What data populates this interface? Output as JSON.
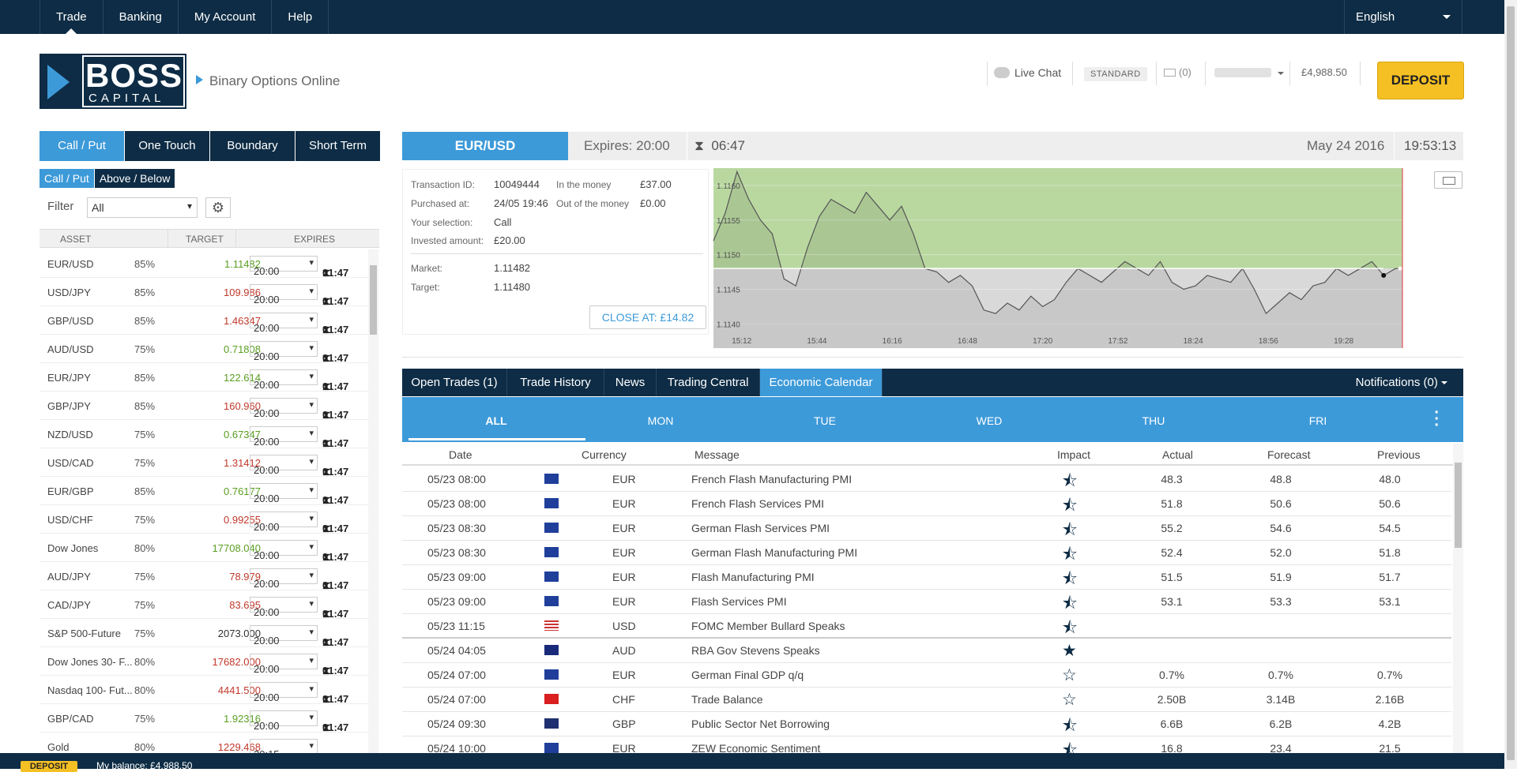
{
  "nav": {
    "items": [
      "Trade",
      "Banking",
      "My Account",
      "Help"
    ],
    "language": "English"
  },
  "logo": {
    "word1": "BOSS",
    "word2": "CAPITAL"
  },
  "tagline": "Binary Options Online",
  "header": {
    "live_chat": "Live Chat",
    "account_type": "STANDARD",
    "messages": "(0)",
    "balance": "£4,988.50",
    "deposit": "DEPOSIT"
  },
  "option_tabs": [
    "Call / Put",
    "One Touch",
    "Boundary",
    "Short Term"
  ],
  "sub_tabs": [
    "Call / Put",
    "Above / Below"
  ],
  "filter": {
    "label": "Filter",
    "value": "All"
  },
  "asset_columns": {
    "asset": "ASSET",
    "target": "TARGET",
    "expires": "EXPIRES"
  },
  "assets": [
    {
      "name": "EUR/USD",
      "pct": "85%",
      "target": "1.11482",
      "dir": "up",
      "expiry": "20:00",
      "time": "01:47"
    },
    {
      "name": "USD/JPY",
      "pct": "85%",
      "target": "109.986",
      "dir": "dn",
      "expiry": "20:00",
      "time": "01:47"
    },
    {
      "name": "GBP/USD",
      "pct": "85%",
      "target": "1.46347",
      "dir": "dn",
      "expiry": "20:00",
      "time": "01:47"
    },
    {
      "name": "AUD/USD",
      "pct": "75%",
      "target": "0.71808",
      "dir": "up",
      "expiry": "20:00",
      "time": "01:47"
    },
    {
      "name": "EUR/JPY",
      "pct": "85%",
      "target": "122.614",
      "dir": "up",
      "expiry": "20:00",
      "time": "01:47"
    },
    {
      "name": "GBP/JPY",
      "pct": "85%",
      "target": "160.960",
      "dir": "dn",
      "expiry": "20:00",
      "time": "01:47"
    },
    {
      "name": "NZD/USD",
      "pct": "75%",
      "target": "0.67347",
      "dir": "up",
      "expiry": "20:00",
      "time": "01:47"
    },
    {
      "name": "USD/CAD",
      "pct": "75%",
      "target": "1.31412",
      "dir": "dn",
      "expiry": "20:00",
      "time": "01:47"
    },
    {
      "name": "EUR/GBP",
      "pct": "85%",
      "target": "0.76177",
      "dir": "up",
      "expiry": "20:00",
      "time": "01:47"
    },
    {
      "name": "USD/CHF",
      "pct": "75%",
      "target": "0.99255",
      "dir": "dn",
      "expiry": "20:00",
      "time": "01:47"
    },
    {
      "name": "Dow Jones",
      "pct": "80%",
      "target": "17708.040",
      "dir": "up",
      "expiry": "20:00",
      "time": "01:47"
    },
    {
      "name": "AUD/JPY",
      "pct": "75%",
      "target": "78.979",
      "dir": "dn",
      "expiry": "20:00",
      "time": "01:47"
    },
    {
      "name": "CAD/JPY",
      "pct": "75%",
      "target": "83.695",
      "dir": "dn",
      "expiry": "20:00",
      "time": "01:47"
    },
    {
      "name": "S&P 500-Future",
      "pct": "75%",
      "target": "2073.000",
      "dir": "nt",
      "expiry": "20:00",
      "time": "01:47"
    },
    {
      "name": "Dow Jones 30- F...",
      "pct": "80%",
      "target": "17682.000",
      "dir": "dn",
      "expiry": "20:00",
      "time": "01:47"
    },
    {
      "name": "Nasdaq 100- Fut...",
      "pct": "80%",
      "target": "4441.500",
      "dir": "dn",
      "expiry": "20:00",
      "time": "01:47"
    },
    {
      "name": "GBP/CAD",
      "pct": "75%",
      "target": "1.92316",
      "dir": "up",
      "expiry": "20:00",
      "time": "01:47"
    },
    {
      "name": "Gold",
      "pct": "80%",
      "target": "1229.468",
      "dir": "dn",
      "expiry": "20:15",
      "time": ""
    }
  ],
  "trade": {
    "pair": "EUR/USD",
    "expires_label": "Expires:",
    "expires": "20:00",
    "countdown": "06:47",
    "date": "May 24 2016",
    "time": "19:53:13"
  },
  "trade_info": {
    "transaction_id_label": "Transaction ID:",
    "transaction_id": "10049444",
    "in_money_label": "In the money",
    "in_money": "£37.00",
    "purchased_label": "Purchased at:",
    "purchased": "24/05 19:46",
    "out_money_label": "Out of the money",
    "out_money": "£0.00",
    "selection_label": "Your selection:",
    "selection": "Call",
    "invested_label": "Invested amount:",
    "invested": "£20.00",
    "market_label": "Market:",
    "market": "1.11482",
    "target_label": "Target:",
    "target": "1.11480",
    "close_label": "CLOSE AT: £14.82"
  },
  "chart_data": {
    "type": "line",
    "y_ticks": [
      "1.1160",
      "1.1155",
      "1.1150",
      "1.1145",
      "1.1140"
    ],
    "x_ticks": [
      "15:12",
      "15:44",
      "16:16",
      "16:48",
      "17:20",
      "17:52",
      "18:24",
      "18:56",
      "19:28"
    ],
    "target": 1.1148,
    "ylim": [
      1.11365,
      1.11625
    ],
    "xlim": [
      "15:00",
      "19:53"
    ],
    "expiry_marker": "19:53",
    "series": [
      {
        "x": [
          "15:00",
          "15:05",
          "15:10",
          "15:15",
          "15:20",
          "15:25",
          "15:30",
          "15:35",
          "15:40",
          "15:45",
          "15:50",
          "15:55",
          "16:00",
          "16:05",
          "16:10",
          "16:15",
          "16:20",
          "16:25",
          "16:30",
          "16:35",
          "16:40",
          "16:45",
          "16:50",
          "16:55",
          "17:00",
          "17:05",
          "17:10",
          "17:15",
          "17:20",
          "17:25",
          "17:30",
          "17:35",
          "17:40",
          "17:45",
          "17:50",
          "17:55",
          "18:00",
          "18:05",
          "18:10",
          "18:15",
          "18:20",
          "18:25",
          "18:30",
          "18:35",
          "18:40",
          "18:45",
          "18:50",
          "18:55",
          "19:00",
          "19:05",
          "19:10",
          "19:15",
          "19:20",
          "19:25",
          "19:30",
          "19:35",
          "19:40",
          "19:45",
          "19:50"
        ],
        "values": [
          1.1152,
          1.1156,
          1.1162,
          1.1158,
          1.1155,
          1.1153,
          1.11465,
          1.11455,
          1.1151,
          1.11555,
          1.1158,
          1.1157,
          1.1156,
          1.1159,
          1.1157,
          1.1155,
          1.1157,
          1.1153,
          1.1148,
          1.11475,
          1.1146,
          1.1147,
          1.11455,
          1.1142,
          1.11415,
          1.1143,
          1.1142,
          1.1144,
          1.11425,
          1.11435,
          1.1146,
          1.1148,
          1.1147,
          1.1146,
          1.11475,
          1.1149,
          1.1148,
          1.1147,
          1.1149,
          1.1146,
          1.1145,
          1.11455,
          1.1147,
          1.11465,
          1.1146,
          1.1148,
          1.1145,
          1.11415,
          1.1143,
          1.11445,
          1.11435,
          1.11455,
          1.1146,
          1.1148,
          1.1147,
          1.1148,
          1.1149,
          1.1147,
          1.1148
        ]
      }
    ]
  },
  "bottom_tabs": [
    "Open Trades (1)",
    "Trade History",
    "News",
    "Trading Central",
    "Economic Calendar"
  ],
  "notifications": "Notifications (0)",
  "days": [
    "ALL",
    "MON",
    "TUE",
    "WED",
    "THU",
    "FRI"
  ],
  "calendar_columns": {
    "date": "Date",
    "currency": "Currency",
    "message": "Message",
    "impact": "Impact",
    "actual": "Actual",
    "forecast": "Forecast",
    "previous": "Previous"
  },
  "calendar": [
    {
      "date": "05/23 08:00",
      "flag": "eu",
      "currency": "EUR",
      "message": "French Flash Manufacturing PMI",
      "impact": "half",
      "actual": "48.3",
      "forecast": "48.8",
      "previous": "48.0"
    },
    {
      "date": "05/23 08:00",
      "flag": "eu",
      "currency": "EUR",
      "message": "French Flash Services PMI",
      "impact": "half",
      "actual": "51.8",
      "forecast": "50.6",
      "previous": "50.6"
    },
    {
      "date": "05/23 08:30",
      "flag": "eu",
      "currency": "EUR",
      "message": "German Flash Services PMI",
      "impact": "half",
      "actual": "55.2",
      "forecast": "54.6",
      "previous": "54.5"
    },
    {
      "date": "05/23 08:30",
      "flag": "eu",
      "currency": "EUR",
      "message": "German Flash Manufacturing PMI",
      "impact": "half",
      "actual": "52.4",
      "forecast": "52.0",
      "previous": "51.8"
    },
    {
      "date": "05/23 09:00",
      "flag": "eu",
      "currency": "EUR",
      "message": "Flash Manufacturing PMI",
      "impact": "half",
      "actual": "51.5",
      "forecast": "51.9",
      "previous": "51.7"
    },
    {
      "date": "05/23 09:00",
      "flag": "eu",
      "currency": "EUR",
      "message": "Flash Services PMI",
      "impact": "half",
      "actual": "53.1",
      "forecast": "53.3",
      "previous": "53.1"
    },
    {
      "date": "05/23 11:15",
      "flag": "us",
      "currency": "USD",
      "message": "FOMC Member Bullard Speaks",
      "impact": "half",
      "actual": "",
      "forecast": "",
      "previous": ""
    },
    {
      "date": "05/24 04:05",
      "flag": "au",
      "currency": "AUD",
      "message": "RBA Gov Stevens Speaks",
      "impact": "full",
      "actual": "",
      "forecast": "",
      "previous": ""
    },
    {
      "date": "05/24 07:00",
      "flag": "eu",
      "currency": "EUR",
      "message": "German Final GDP q/q",
      "impact": "empty",
      "actual": "0.7%",
      "forecast": "0.7%",
      "previous": "0.7%"
    },
    {
      "date": "05/24 07:00",
      "flag": "ch",
      "currency": "CHF",
      "message": "Trade Balance",
      "impact": "empty",
      "actual": "2.50B",
      "forecast": "3.14B",
      "previous": "2.16B"
    },
    {
      "date": "05/24 09:30",
      "flag": "gb",
      "currency": "GBP",
      "message": "Public Sector Net Borrowing",
      "impact": "half",
      "actual": "6.6B",
      "forecast": "6.2B",
      "previous": "4.2B"
    },
    {
      "date": "05/24 10:00",
      "flag": "eu",
      "currency": "EUR",
      "message": "ZEW Economic Sentiment",
      "impact": "half",
      "actual": "16.8",
      "forecast": "23.4",
      "previous": "21.5"
    }
  ],
  "footer": {
    "deposit": "DEPOSIT",
    "balance": "My balance: £4,988.50"
  }
}
